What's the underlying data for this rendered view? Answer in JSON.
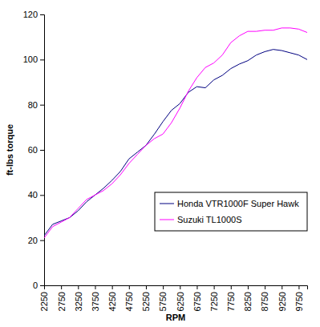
{
  "chart_data": {
    "type": "line",
    "x_label": "RPM",
    "y_label": "ft-lbs torque",
    "x": [
      2250,
      2500,
      2750,
      3000,
      3250,
      3500,
      3750,
      4000,
      4250,
      4500,
      4750,
      5000,
      5250,
      5500,
      5750,
      6000,
      6250,
      6500,
      6750,
      7000,
      7250,
      7500,
      7750,
      8000,
      8250,
      8500,
      8750,
      9000,
      9250,
      9500,
      9750,
      10000
    ],
    "series": [
      {
        "name": "Honda VTR1000F Super Hawk",
        "color": "#000080",
        "values": [
          22,
          27,
          28.5,
          30,
          33,
          37,
          40,
          43,
          46.5,
          50.5,
          56,
          59,
          62,
          67,
          72.5,
          77.5,
          80.5,
          85.5,
          88,
          87.5,
          91,
          93,
          96,
          98,
          99.5,
          102,
          103.5,
          104.5,
          104,
          103,
          102,
          100
        ]
      },
      {
        "name": "Suzuki TL1000S",
        "color": "#ff00ff",
        "values": [
          21,
          26,
          28,
          30,
          34,
          38,
          40,
          42,
          45,
          49,
          54,
          58,
          62,
          65,
          67,
          72,
          78.5,
          86,
          92,
          96.5,
          98.5,
          102,
          107.5,
          110.5,
          112.5,
          112.5,
          113,
          113,
          114,
          114,
          113.5,
          112
        ]
      }
    ],
    "xlim": [
      2250,
      10000
    ],
    "xticks": [
      2250,
      2750,
      3250,
      3750,
      4250,
      4750,
      5250,
      5750,
      6250,
      6750,
      7250,
      7750,
      8250,
      8750,
      9250,
      9750
    ],
    "ylim": [
      0,
      120
    ],
    "yticks": [
      0,
      20,
      40,
      60,
      80,
      100,
      120
    ],
    "grid": false,
    "legend": "lower right"
  }
}
